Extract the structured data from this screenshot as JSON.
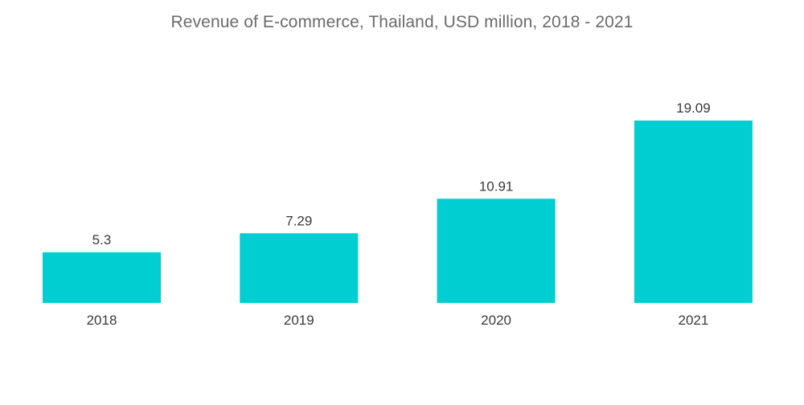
{
  "chart_data": {
    "type": "bar",
    "title": "Revenue of E-commerce, Thailand, USD million, 2018 - 2021",
    "categories": [
      "2018",
      "2019",
      "2020",
      "2021"
    ],
    "values": [
      5.3,
      7.29,
      10.91,
      19.09
    ],
    "value_labels": [
      "5.3",
      "7.29",
      "10.91",
      "19.09"
    ],
    "xlabel": "",
    "ylabel": "",
    "ylim": [
      0,
      19.09
    ],
    "grid": false,
    "legend": "none",
    "bar_color": "#00CED1"
  }
}
